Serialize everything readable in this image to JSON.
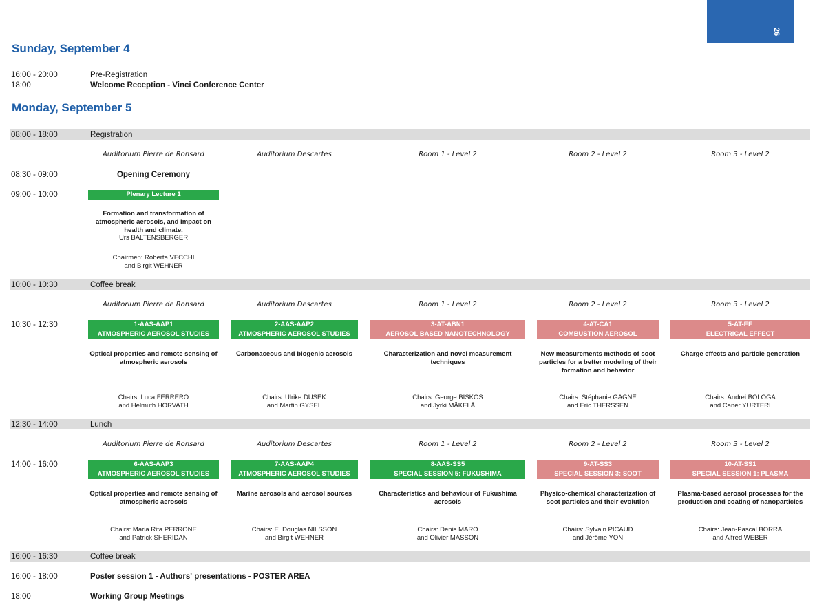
{
  "page_number": "26",
  "sunday": {
    "title": "Sunday, September 4",
    "rows": [
      {
        "time": "16:00 - 20:00",
        "text": "Pre-Registration"
      },
      {
        "time": "18:00",
        "text": "Welcome Reception - Vinci Conference Center"
      }
    ]
  },
  "monday": {
    "title": "Monday, September 5",
    "registration": {
      "time": "08:00 - 18:00",
      "text": "Registration"
    },
    "rooms": [
      "Auditorium Pierre de Ronsard",
      "Auditorium Descartes",
      "Room 1 - Level 2",
      "Room 2 - Level 2",
      "Room 3 - Level 2"
    ],
    "opening": {
      "time": "08:30 - 09:00",
      "text": "Opening Ceremony"
    },
    "plenary": {
      "time": "09:00 - 10:00",
      "label": "Plenary Lecture 1",
      "title": "Formation and transformation of atmospheric aerosols, and impact on health and climate.",
      "speaker": "Urs BALTENSBERGER",
      "chairs_1": "Chairmen: Roberta VECCHI",
      "chairs_2": "and Birgit WEHNER"
    },
    "coffee1": {
      "time": "10:00 - 10:30",
      "text": "Coffee break"
    },
    "session1_time": "10:30 - 12:30",
    "session1": [
      {
        "code": "1-AAS-AAP1",
        "topic": "ATMOSPHERIC AEROSOL STUDIES",
        "title": "Optical properties and remote sensing of atmospheric aerosols",
        "chairs_1": "Chairs: Luca FERRERO",
        "chairs_2": "and Helmuth HORVATH"
      },
      {
        "code": "2-AAS-AAP2",
        "topic": "ATMOSPHERIC AEROSOL STUDIES",
        "title": "Carbonaceous and biogenic aerosols",
        "chairs_1": "Chairs: Ulrike DUSEK",
        "chairs_2": "and Martin GYSEL"
      },
      {
        "code": "3-AT-ABN1",
        "topic": "AEROSOL BASED NANOTECHNOLOGY",
        "title": "Characterization and novel measurement techniques",
        "chairs_1": "Chairs: George BISKOS",
        "chairs_2": "and Jyrki MÄKELÄ"
      },
      {
        "code": "4-AT-CA1",
        "topic": "COMBUSTION AEROSOL",
        "title": "New measurements methods of soot particles for a better modeling of their formation and behavior",
        "chairs_1": "Chairs: Stéphanie GAGNÉ",
        "chairs_2": "and Eric THERSSEN"
      },
      {
        "code": "5-AT-EE",
        "topic": "ELECTRICAL EFFECT",
        "title": "Charge effects and particle generation",
        "chairs_1": "Chairs: Andrei BOLOGA",
        "chairs_2": "and Caner YURTERI"
      }
    ],
    "lunch": {
      "time": "12:30 - 14:00",
      "text": "Lunch"
    },
    "session2_time": "14:00 - 16:00",
    "session2": [
      {
        "code": "6-AAS-AAP3",
        "topic": "ATMOSPHERIC AEROSOL STUDIES",
        "title": "Optical properties and remote sensing of atmospheric aerosols",
        "chairs_1": "Chairs: Maria Rita PERRONE",
        "chairs_2": "and Patrick SHERIDAN"
      },
      {
        "code": "7-AAS-AAP4",
        "topic": "ATMOSPHERIC AEROSOL STUDIES",
        "title": "Marine aerosols and aerosol sources",
        "chairs_1": "Chairs: E. Douglas NILSSON",
        "chairs_2": "and Birgit WEHNER"
      },
      {
        "code": "8-AAS-SS5",
        "topic": "SPECIAL SESSION 5: FUKUSHIMA",
        "title": "Characteristics and behaviour of Fukushima aerosols",
        "chairs_1": "Chairs: Denis MARO",
        "chairs_2": "and Olivier MASSON"
      },
      {
        "code": "9-AT-SS3",
        "topic": "SPECIAL SESSION 3: SOOT",
        "title": "Physico-chemical characterization of soot particles and their evolution",
        "chairs_1": "Chairs: Sylvain PICAUD",
        "chairs_2": "and Jérôme YON"
      },
      {
        "code": "10-AT-SS1",
        "topic": "SPECIAL SESSION 1: PLASMA",
        "title": "Plasma-based aerosol processes for the production and coating of nanoparticles",
        "chairs_1": "Chairs: Jean-Pascal BORRA",
        "chairs_2": "and Alfred WEBER"
      }
    ],
    "coffee2": {
      "time": "16:00 - 16:30",
      "text": "Coffee break"
    },
    "poster": {
      "time": "16:00 - 18:00",
      "text": "Poster session 1 - Authors' presentations - POSTER AREA"
    },
    "working": {
      "time": "18:00",
      "text": "Working Group Meetings"
    }
  },
  "colors": {
    "blue": "#2a67b1",
    "green": "#2aa84a",
    "pink": "#dc8a8a",
    "grey": "#dcdcdc"
  }
}
